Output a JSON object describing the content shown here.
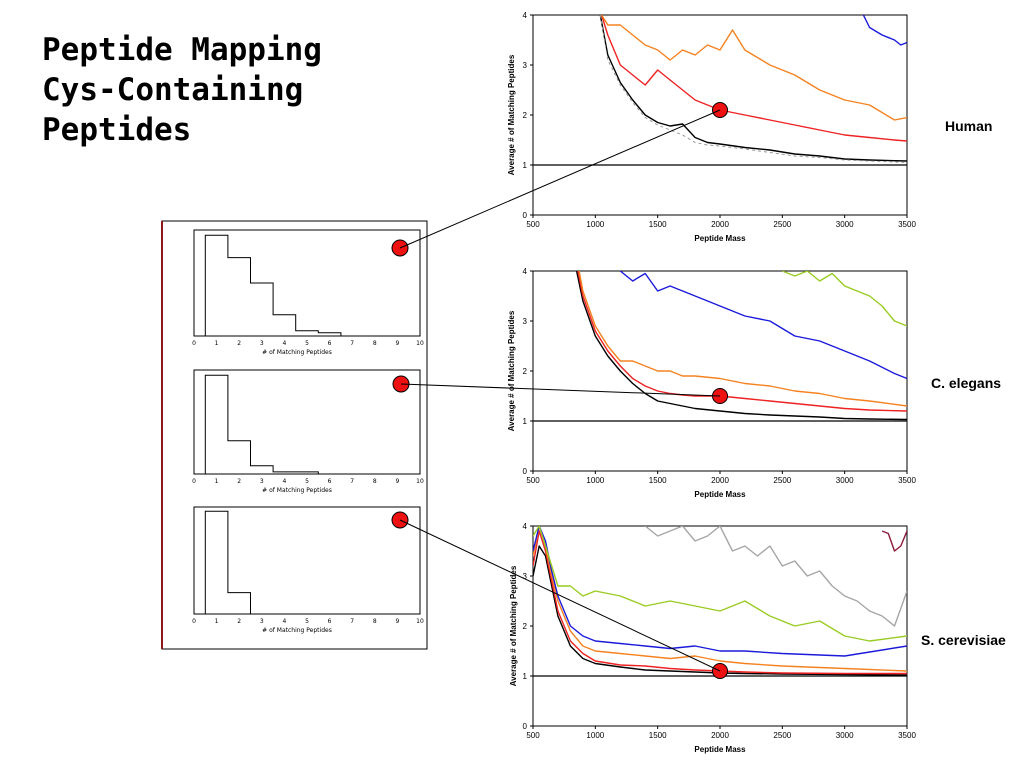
{
  "slide": {
    "title_lines": [
      "Peptide Mapping",
      "Cys-Containing",
      "Peptides"
    ]
  },
  "labels": {
    "human": "Human",
    "elegans": "C. elegans",
    "cerevisiae": "S. cerevisiae"
  },
  "colors": {
    "marker": "#ee1111",
    "black": "#000000",
    "red": "#ee2222",
    "orange": "#f58220",
    "blue": "#1a1adb",
    "green": "#99cc22",
    "gray": "#a6a6a6",
    "maroon": "#8b1a3a",
    "dashed": "#999999"
  },
  "chart_data": [
    {
      "id": "human",
      "type": "line",
      "xlabel": "Peptide Mass",
      "ylabel": "Average # of Matching Peptides",
      "xlim": [
        500,
        3500
      ],
      "ylim": [
        0,
        4
      ],
      "xticks": [
        500,
        1000,
        1500,
        2000,
        2500,
        3000,
        3500
      ],
      "yticks": [
        0,
        1,
        2,
        3,
        4
      ],
      "reference_line": 1,
      "highlight": {
        "x": 2000,
        "y": 2.1
      },
      "series": [
        {
          "color": "black",
          "x": [
            1040,
            1100,
            1200,
            1300,
            1400,
            1500,
            1600,
            1700,
            1800,
            1900,
            2000,
            2200,
            2400,
            2600,
            2800,
            3000,
            3200,
            3500
          ],
          "y": [
            4.0,
            3.2,
            2.65,
            2.3,
            2.0,
            1.85,
            1.78,
            1.82,
            1.55,
            1.45,
            1.42,
            1.35,
            1.3,
            1.22,
            1.18,
            1.12,
            1.1,
            1.08
          ]
        },
        {
          "color": "dashed",
          "dashed": true,
          "x": [
            1040,
            1100,
            1200,
            1300,
            1400,
            1500,
            1600,
            1700,
            1800,
            1900,
            2000,
            2200,
            2400,
            2600,
            2800,
            3000,
            3200,
            3500
          ],
          "y": [
            4.0,
            3.1,
            2.6,
            2.25,
            1.95,
            1.8,
            1.7,
            1.6,
            1.45,
            1.4,
            1.38,
            1.32,
            1.25,
            1.18,
            1.15,
            1.1,
            1.08,
            1.05
          ]
        },
        {
          "color": "red",
          "x": [
            1050,
            1100,
            1200,
            1300,
            1400,
            1500,
            1600,
            1700,
            1800,
            1900,
            2000,
            2200,
            2400,
            2600,
            2800,
            3000,
            3200,
            3400,
            3500
          ],
          "y": [
            4.0,
            3.6,
            3.0,
            2.8,
            2.6,
            2.9,
            2.7,
            2.5,
            2.3,
            2.2,
            2.1,
            2.0,
            1.9,
            1.8,
            1.7,
            1.6,
            1.55,
            1.5,
            1.48
          ]
        },
        {
          "color": "orange",
          "x": [
            1050,
            1100,
            1200,
            1300,
            1400,
            1500,
            1600,
            1700,
            1800,
            1900,
            2000,
            2100,
            2200,
            2400,
            2600,
            2800,
            3000,
            3200,
            3400,
            3500
          ],
          "y": [
            4.0,
            3.8,
            3.8,
            3.6,
            3.4,
            3.3,
            3.1,
            3.3,
            3.2,
            3.4,
            3.3,
            3.7,
            3.3,
            3.0,
            2.8,
            2.5,
            2.3,
            2.2,
            1.9,
            1.95
          ]
        },
        {
          "color": "blue",
          "x": [
            3150,
            3200,
            3300,
            3400,
            3450,
            3500
          ],
          "y": [
            4.0,
            3.75,
            3.6,
            3.5,
            3.4,
            3.45
          ]
        }
      ]
    },
    {
      "id": "elegans",
      "type": "line",
      "xlabel": "Peptide Mass",
      "ylabel": "Average # of Matching Peptides",
      "xlim": [
        500,
        3500
      ],
      "ylim": [
        0,
        4
      ],
      "xticks": [
        500,
        1000,
        1500,
        2000,
        2500,
        3000,
        3500
      ],
      "yticks": [
        0,
        1,
        2,
        3,
        4
      ],
      "reference_line": 1,
      "highlight": {
        "x": 2000,
        "y": 1.5
      },
      "series": [
        {
          "color": "black",
          "x": [
            850,
            900,
            1000,
            1100,
            1200,
            1300,
            1400,
            1500,
            1600,
            1700,
            1800,
            2000,
            2200,
            2400,
            2600,
            2800,
            3000,
            3200,
            3500
          ],
          "y": [
            4.0,
            3.4,
            2.7,
            2.3,
            2.0,
            1.75,
            1.55,
            1.4,
            1.35,
            1.3,
            1.25,
            1.2,
            1.15,
            1.12,
            1.1,
            1.08,
            1.05,
            1.04,
            1.03
          ]
        },
        {
          "color": "red",
          "x": [
            860,
            900,
            1000,
            1100,
            1200,
            1300,
            1400,
            1500,
            1600,
            1700,
            1800,
            2000,
            2200,
            2400,
            2600,
            2800,
            3000,
            3200,
            3500
          ],
          "y": [
            4.0,
            3.5,
            2.8,
            2.4,
            2.1,
            1.85,
            1.7,
            1.6,
            1.55,
            1.52,
            1.5,
            1.5,
            1.45,
            1.4,
            1.35,
            1.3,
            1.25,
            1.22,
            1.2
          ]
        },
        {
          "color": "orange",
          "x": [
            870,
            900,
            1000,
            1100,
            1200,
            1300,
            1400,
            1500,
            1600,
            1700,
            1800,
            2000,
            2200,
            2400,
            2600,
            2800,
            3000,
            3200,
            3500
          ],
          "y": [
            4.0,
            3.6,
            2.9,
            2.5,
            2.2,
            2.2,
            2.1,
            2.0,
            2.0,
            1.9,
            1.9,
            1.85,
            1.75,
            1.7,
            1.6,
            1.55,
            1.45,
            1.4,
            1.3
          ]
        },
        {
          "color": "blue",
          "x": [
            1200,
            1300,
            1400,
            1500,
            1600,
            1800,
            2000,
            2200,
            2400,
            2600,
            2800,
            3000,
            3200,
            3400,
            3500
          ],
          "y": [
            4.0,
            3.8,
            3.95,
            3.6,
            3.7,
            3.5,
            3.3,
            3.1,
            3.0,
            2.7,
            2.6,
            2.4,
            2.2,
            1.95,
            1.85
          ]
        },
        {
          "color": "green",
          "x": [
            2500,
            2600,
            2700,
            2800,
            2900,
            3000,
            3100,
            3200,
            3300,
            3400,
            3500
          ],
          "y": [
            4.0,
            3.9,
            4.0,
            3.8,
            3.95,
            3.7,
            3.6,
            3.5,
            3.3,
            3.0,
            2.9
          ]
        }
      ]
    },
    {
      "id": "cerevisiae",
      "type": "line",
      "xlabel": "Peptide Mass",
      "ylabel": "Average # of Matching Peptides",
      "xlim": [
        500,
        3500
      ],
      "ylim": [
        0,
        4
      ],
      "xticks": [
        500,
        1000,
        1500,
        2000,
        2500,
        3000,
        3500
      ],
      "yticks": [
        0,
        1,
        2,
        3,
        4
      ],
      "reference_line": 1,
      "highlight": {
        "x": 2000,
        "y": 1.1
      },
      "series": [
        {
          "color": "black",
          "x": [
            500,
            550,
            600,
            650,
            700,
            800,
            900,
            1000,
            1200,
            1400,
            1600,
            1800,
            2000,
            2200,
            2500,
            3000,
            3500
          ],
          "y": [
            3.0,
            3.6,
            3.4,
            2.8,
            2.2,
            1.6,
            1.35,
            1.25,
            1.18,
            1.12,
            1.1,
            1.08,
            1.06,
            1.05,
            1.04,
            1.03,
            1.02
          ]
        },
        {
          "color": "red",
          "x": [
            500,
            550,
            600,
            650,
            700,
            800,
            900,
            1000,
            1200,
            1400,
            1600,
            1800,
            2000,
            2200,
            2500,
            3000,
            3500
          ],
          "y": [
            3.2,
            3.9,
            3.5,
            2.9,
            2.3,
            1.7,
            1.45,
            1.3,
            1.22,
            1.2,
            1.15,
            1.12,
            1.1,
            1.08,
            1.06,
            1.05,
            1.05
          ]
        },
        {
          "color": "orange",
          "x": [
            500,
            550,
            600,
            650,
            700,
            800,
            900,
            1000,
            1200,
            1400,
            1600,
            1800,
            2000,
            2200,
            2500,
            3000,
            3500
          ],
          "y": [
            3.4,
            4.0,
            3.6,
            3.0,
            2.5,
            1.9,
            1.6,
            1.5,
            1.45,
            1.4,
            1.35,
            1.4,
            1.3,
            1.25,
            1.2,
            1.15,
            1.1
          ]
        },
        {
          "color": "blue",
          "x": [
            500,
            550,
            600,
            650,
            700,
            800,
            900,
            1000,
            1200,
            1400,
            1600,
            1800,
            2000,
            2200,
            2500,
            3000,
            3500
          ],
          "y": [
            3.5,
            4.0,
            3.7,
            3.1,
            2.6,
            2.0,
            1.8,
            1.7,
            1.65,
            1.6,
            1.55,
            1.6,
            1.5,
            1.5,
            1.45,
            1.4,
            1.6
          ]
        },
        {
          "color": "green",
          "x": [
            500,
            550,
            600,
            700,
            800,
            900,
            1000,
            1200,
            1400,
            1600,
            1800,
            2000,
            2200,
            2400,
            2600,
            2800,
            3000,
            3200,
            3500
          ],
          "y": [
            3.8,
            4.0,
            3.6,
            2.8,
            2.8,
            2.6,
            2.7,
            2.6,
            2.4,
            2.5,
            2.4,
            2.3,
            2.5,
            2.2,
            2.0,
            2.1,
            1.8,
            1.7,
            1.8
          ]
        },
        {
          "color": "gray",
          "x": [
            1400,
            1500,
            1600,
            1700,
            1800,
            1900,
            2000,
            2100,
            2200,
            2300,
            2400,
            2500,
            2600,
            2700,
            2800,
            2900,
            3000,
            3100,
            3200,
            3300,
            3400,
            3500
          ],
          "y": [
            4.0,
            3.8,
            3.9,
            4.0,
            3.7,
            3.8,
            4.0,
            3.5,
            3.6,
            3.4,
            3.6,
            3.2,
            3.3,
            3.0,
            3.1,
            2.8,
            2.6,
            2.5,
            2.3,
            2.2,
            2.0,
            2.7
          ]
        },
        {
          "color": "maroon",
          "x": [
            3300,
            3350,
            3400,
            3450,
            3500
          ],
          "y": [
            3.9,
            3.85,
            3.5,
            3.6,
            3.9
          ]
        }
      ]
    },
    {
      "id": "hist1",
      "type": "bar",
      "xlabel": "# of Matching Peptides",
      "xticks": [
        "0",
        "1",
        "2",
        "3",
        "4",
        "5",
        "6",
        "7",
        "8",
        "9",
        "10"
      ],
      "categories": [
        1,
        2,
        3,
        4,
        5,
        6
      ],
      "values": [
        0.95,
        0.74,
        0.5,
        0.2,
        0.05,
        0.03
      ]
    },
    {
      "id": "hist2",
      "type": "bar",
      "xlabel": "# of Matching Peptides",
      "xticks": [
        "0",
        "1",
        "2",
        "3",
        "4",
        "5",
        "6",
        "7",
        "8",
        "9",
        "10"
      ],
      "categories": [
        1,
        2,
        3,
        4,
        5
      ],
      "values": [
        0.95,
        0.32,
        0.08,
        0.02,
        0.02
      ]
    },
    {
      "id": "hist3",
      "type": "bar",
      "xlabel": "# of Matching Peptides",
      "xticks": [
        "0",
        "1",
        "2",
        "3",
        "4",
        "5",
        "6",
        "7",
        "8",
        "9",
        "10"
      ],
      "categories": [
        1,
        2
      ],
      "values": [
        0.96,
        0.2
      ]
    }
  ]
}
